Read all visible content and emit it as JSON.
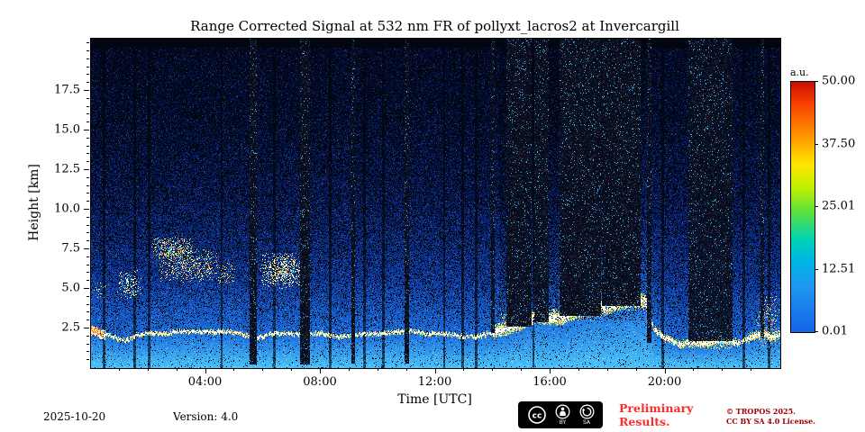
{
  "chart_data": {
    "type": "heatmap",
    "title": "Range Corrected Signal at 532 nm FR of pollyxt_lacros2 at Invercargill",
    "xlabel": "Time [UTC]",
    "ylabel": "Height [km]",
    "x_range_hours": [
      0,
      24
    ],
    "x_major_tick_hours": [
      4,
      8,
      12,
      16,
      20
    ],
    "x_tick_labels": [
      "04:00",
      "08:00",
      "12:00",
      "16:00",
      "20:00"
    ],
    "x_minor_tick_step_hours": 1,
    "y_range_km": [
      0,
      20.8
    ],
    "y_major_ticks_km": [
      2.5,
      5.0,
      7.5,
      10.0,
      12.5,
      15.0,
      17.5
    ],
    "y_tick_labels": [
      "2.5",
      "5.0",
      "7.5",
      "10.0",
      "12.5",
      "15.0",
      "17.5"
    ],
    "y_minor_tick_step_km": 0.5,
    "colorbar": {
      "label": "a.u.",
      "tick_labels": [
        "50.00",
        "37.50",
        "25.01",
        "12.51",
        "0.01"
      ],
      "min": 0.01,
      "max": 50.0,
      "colormap": "jet-like"
    },
    "features": {
      "boundary_layer_top_km": [
        [
          0,
          2.35
        ],
        [
          0.3,
          2.1
        ],
        [
          0.7,
          1.95
        ],
        [
          1.2,
          1.8
        ],
        [
          1.6,
          2.1
        ],
        [
          2.2,
          2.25
        ],
        [
          3.0,
          2.35
        ],
        [
          3.6,
          2.3
        ],
        [
          4.2,
          2.3
        ],
        [
          4.8,
          2.2
        ],
        [
          5.4,
          2.0
        ],
        [
          5.8,
          1.9
        ],
        [
          6.2,
          2.05
        ],
        [
          6.8,
          2.2
        ],
        [
          7.4,
          2.25
        ],
        [
          8.0,
          2.2
        ],
        [
          8.6,
          2.1
        ],
        [
          9.2,
          2.05
        ],
        [
          10,
          2.15
        ],
        [
          11,
          2.2
        ],
        [
          12,
          2.15
        ],
        [
          12.8,
          2.05
        ],
        [
          13.5,
          2.1
        ],
        [
          14,
          2.3
        ],
        [
          14.5,
          2.6
        ],
        [
          15,
          2.9
        ],
        [
          15.5,
          3.2
        ],
        [
          16,
          3.0
        ],
        [
          16.5,
          3.2
        ],
        [
          17,
          3.5
        ],
        [
          17.5,
          4.0
        ],
        [
          18,
          3.8
        ],
        [
          18.5,
          4.2
        ],
        [
          19,
          4.4
        ],
        [
          19.3,
          4.3
        ],
        [
          19.6,
          2.6
        ],
        [
          20,
          1.9
        ],
        [
          20.5,
          1.5
        ],
        [
          21,
          1.7
        ],
        [
          21.4,
          1.4
        ],
        [
          21.8,
          1.6
        ],
        [
          22.2,
          1.7
        ],
        [
          22.6,
          1.5
        ],
        [
          23,
          1.9
        ],
        [
          23.4,
          2.1
        ],
        [
          23.7,
          2.0
        ],
        [
          24,
          2.2
        ]
      ],
      "clouds": [
        [
          0.08,
          0.55,
          4.4,
          5.5,
          0.12
        ],
        [
          0.9,
          1.75,
          4.3,
          6.2,
          0.3
        ],
        [
          2.1,
          3.55,
          6.9,
          8.3,
          0.5
        ],
        [
          2.35,
          4.45,
          5.4,
          7.5,
          0.33
        ],
        [
          4.35,
          5.05,
          5.2,
          6.7,
          0.22
        ],
        [
          5.9,
          7.4,
          5.0,
          7.3,
          0.5
        ],
        [
          14.2,
          15.35,
          2.5,
          3.5,
          0.45
        ],
        [
          15.5,
          16.3,
          2.8,
          3.8,
          0.4
        ],
        [
          16.4,
          17.8,
          3.0,
          4.2,
          0.35
        ],
        [
          17.9,
          19.3,
          3.6,
          4.8,
          0.35
        ],
        [
          20.6,
          22.5,
          1.2,
          2.0,
          0.35
        ],
        [
          23.15,
          24,
          1.3,
          4.6,
          0.22
        ]
      ],
      "dark_columns": [
        [
          5.52,
          5.78,
          0.25,
          0.92
        ],
        [
          7.28,
          7.62,
          0.2,
          0.93
        ],
        [
          9.07,
          9.2,
          0.3,
          0.9
        ],
        [
          10.93,
          11.06,
          0.3,
          0.9
        ],
        [
          13.92,
          14.06,
          2.2,
          0.88
        ],
        [
          14.45,
          15.33,
          2.6,
          0.9
        ],
        [
          15.45,
          15.95,
          2.9,
          0.85
        ],
        [
          16.3,
          17.75,
          3.3,
          0.92
        ],
        [
          17.8,
          19.15,
          3.9,
          0.93
        ],
        [
          19.35,
          19.52,
          1.6,
          0.85
        ],
        [
          20.8,
          22.35,
          1.7,
          0.8
        ],
        [
          23.3,
          23.42,
          1.9,
          0.7
        ]
      ],
      "thin_dark_lines_hours": [
        0.45,
        1.52,
        2.02,
        4.55,
        6.38,
        8.32,
        9.52,
        10.18,
        12.3,
        12.95,
        13.42,
        19.9,
        22.72,
        23.6
      ],
      "dark_red_line_hour": 15.4
    }
  },
  "footer": {
    "date": "2025-10-20",
    "version": "Version: 4.0",
    "preliminary_line1": "Preliminary",
    "preliminary_line2": "Results.",
    "copyright_line1": "© TROPOS 2025.",
    "copyright_line2": "CC BY SA 4.0 License.",
    "badge": {
      "cc": "cc",
      "by_label": "BY",
      "sa_label": "SA"
    }
  }
}
